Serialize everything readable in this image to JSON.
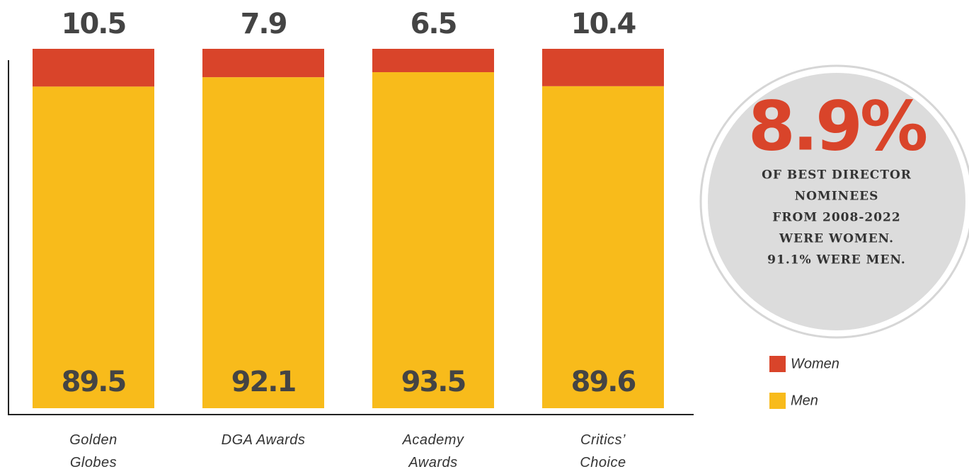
{
  "chart_data": {
    "type": "stacked_bar",
    "categories": [
      "Golden Globes",
      "DGA Awards",
      "Academy Awards",
      "Critics’ Choice"
    ],
    "series": [
      {
        "name": "Men",
        "color": "#f8bb1b",
        "values": [
          89.5,
          92.1,
          93.5,
          89.6
        ]
      },
      {
        "name": "Women",
        "color": "#d9442a",
        "values": [
          10.5,
          7.9,
          6.5,
          10.4
        ]
      }
    ],
    "ylim": [
      0,
      100
    ],
    "callout": {
      "value": "8.9%",
      "lines": [
        "OF BEST DIRECTOR",
        "NOMINEES",
        "FROM 2008-2022",
        "WERE WOMEN.",
        "91.1% WERE MEN."
      ]
    }
  }
}
